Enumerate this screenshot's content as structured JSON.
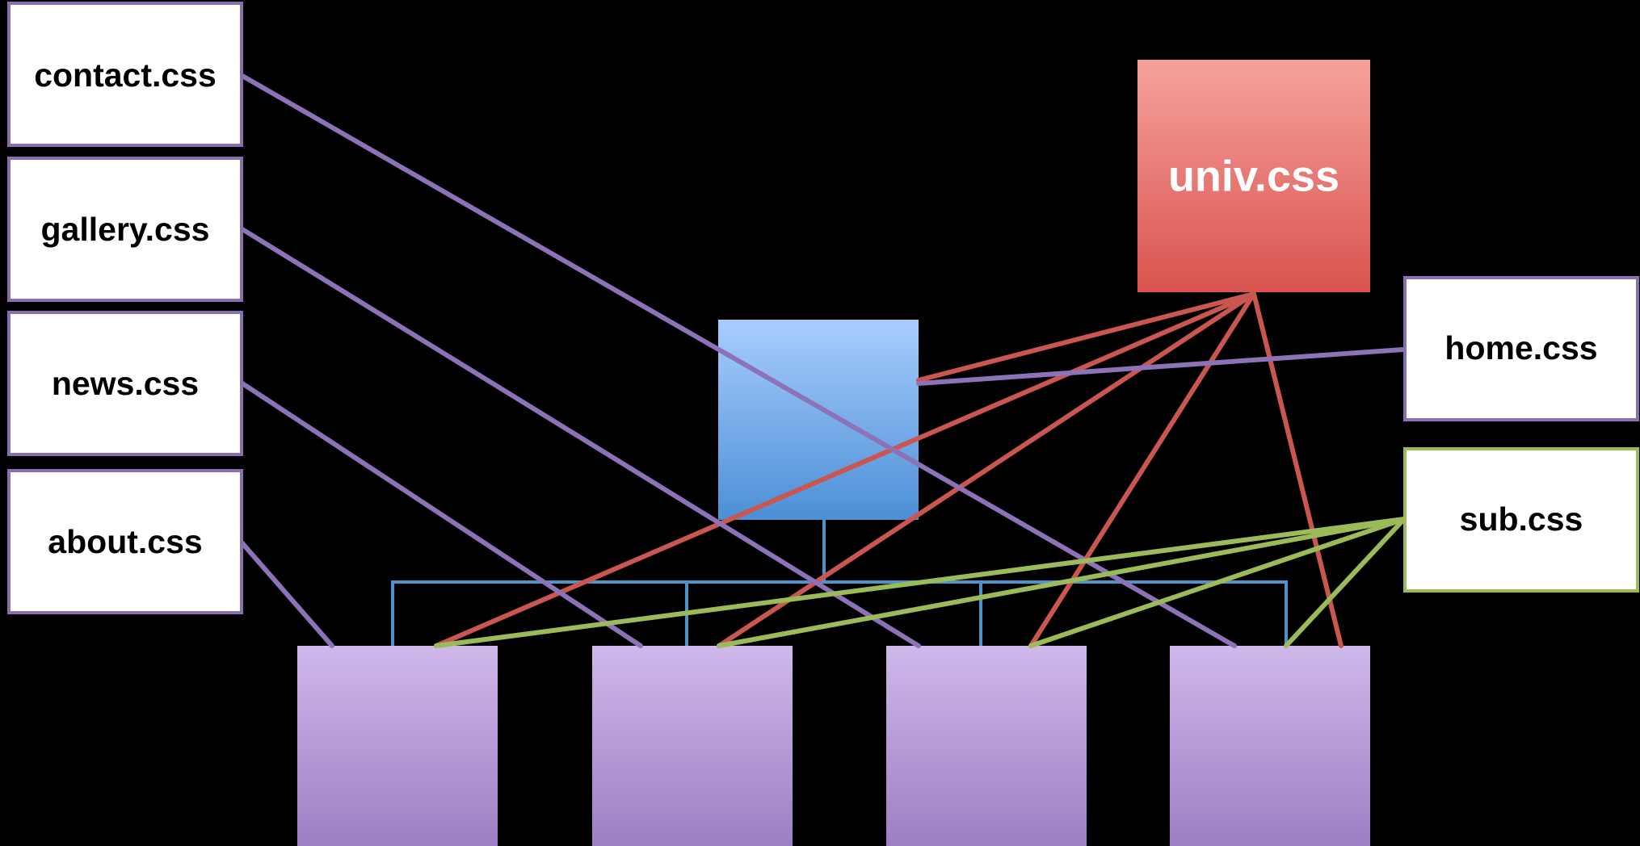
{
  "files": {
    "contact": "contact.css",
    "gallery": "gallery.css",
    "news": "news.css",
    "about": "about.css",
    "home": "home.css",
    "sub": "sub.css",
    "univ": "univ.css"
  },
  "colors": {
    "background": "#000000",
    "page_box_border": "#8a6fb0",
    "sub_box_border": "#9bbb59",
    "page_links": "#8d72b8",
    "univ_links": "#c9564f",
    "sub_links": "#9bbb59",
    "tree_lines": "#4f91c9",
    "univ_gradient": [
      "#f6a29c",
      "#d9534f"
    ],
    "home_node_gradient": [
      "#a8cdfd",
      "#4c8fd6"
    ],
    "child_node_gradient": [
      "#cfb8ea",
      "#9a7cc2"
    ]
  },
  "links": {
    "page_css": [
      "contact",
      "gallery",
      "news",
      "about",
      "home"
    ],
    "univ_css_targets": [
      "home-node",
      "child-1",
      "child-2",
      "child-3",
      "child-4"
    ],
    "sub_css_targets": [
      "child-1",
      "child-2",
      "child-3",
      "child-4"
    ]
  }
}
